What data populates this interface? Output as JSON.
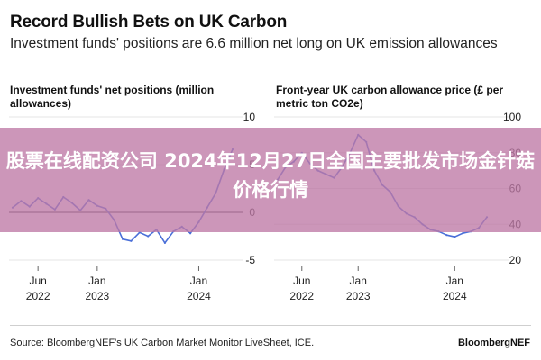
{
  "header": {
    "title": "Record Bullish Bets on UK Carbon",
    "subtitle": "Investment funds' positions are 6.6 million net long on UK emission allowances"
  },
  "overlay": {
    "text": "股票在线配资公司 2024年12月27日全国主要批发市场金针菇价格行情"
  },
  "footer": {
    "source": "Source: BloombergNEF's UK Carbon Market Monitor LiveSheet, ICE.",
    "brand": "BloombergNEF"
  },
  "colors": {
    "line": "#4a6fd8",
    "zero_line": "#555555",
    "grid": "#e4e4e4",
    "overlay": "#be78a5"
  },
  "chart_data": [
    {
      "type": "line",
      "title": "Investment funds' net positions (million allowances)",
      "x_ticks": [
        {
          "month": "Jun",
          "year": "2022"
        },
        {
          "month": "Jan",
          "year": "2023"
        },
        {
          "month": "Jan",
          "year": "2024"
        }
      ],
      "y_ticks": [
        10,
        5,
        0,
        -5
      ],
      "ylim": [
        -5,
        10
      ],
      "y_axis_side": "right",
      "zero_line": true,
      "series": [
        {
          "x": [
            "2022-03",
            "2022-04",
            "2022-05",
            "2022-06",
            "2022-07",
            "2022-08",
            "2022-09",
            "2022-10",
            "2022-11",
            "2022-12",
            "2023-01",
            "2023-02",
            "2023-03",
            "2023-04",
            "2023-05",
            "2023-06",
            "2023-07",
            "2023-08",
            "2023-09",
            "2023-10",
            "2023-11",
            "2023-12",
            "2024-01",
            "2024-02",
            "2024-03",
            "2024-04",
            "2024-05"
          ],
          "y": [
            0.5,
            1.2,
            0.6,
            1.5,
            0.9,
            0.3,
            1.6,
            1.0,
            0.2,
            1.3,
            0.7,
            0.4,
            -0.8,
            -2.8,
            -3.0,
            -2.1,
            -2.5,
            -1.8,
            -3.2,
            -2.0,
            -1.5,
            -2.2,
            -1.0,
            0.5,
            2.0,
            4.5,
            6.6
          ]
        }
      ]
    },
    {
      "type": "line",
      "title": "Front-year UK carbon allowance price (£ per metric ton CO2e)",
      "x_ticks": [
        {
          "month": "Jun",
          "year": "2022"
        },
        {
          "month": "Jan",
          "year": "2023"
        },
        {
          "month": "Jan",
          "year": "2024"
        }
      ],
      "y_ticks": [
        100,
        80,
        60,
        40,
        20
      ],
      "ylim": [
        20,
        100
      ],
      "y_axis_side": "right",
      "series": [
        {
          "x": [
            "2022-03",
            "2022-04",
            "2022-05",
            "2022-06",
            "2022-07",
            "2022-08",
            "2022-09",
            "2022-10",
            "2022-11",
            "2022-12",
            "2023-01",
            "2023-02",
            "2023-03",
            "2023-04",
            "2023-05",
            "2023-06",
            "2023-07",
            "2023-08",
            "2023-09",
            "2023-10",
            "2023-11",
            "2023-12",
            "2024-01",
            "2024-02",
            "2024-03",
            "2024-04",
            "2024-05"
          ],
          "y": [
            65,
            72,
            75,
            80,
            74,
            70,
            68,
            66,
            72,
            80,
            90,
            86,
            70,
            62,
            58,
            50,
            46,
            44,
            40,
            37,
            36,
            34,
            33,
            35,
            36,
            38,
            44
          ]
        }
      ]
    }
  ]
}
